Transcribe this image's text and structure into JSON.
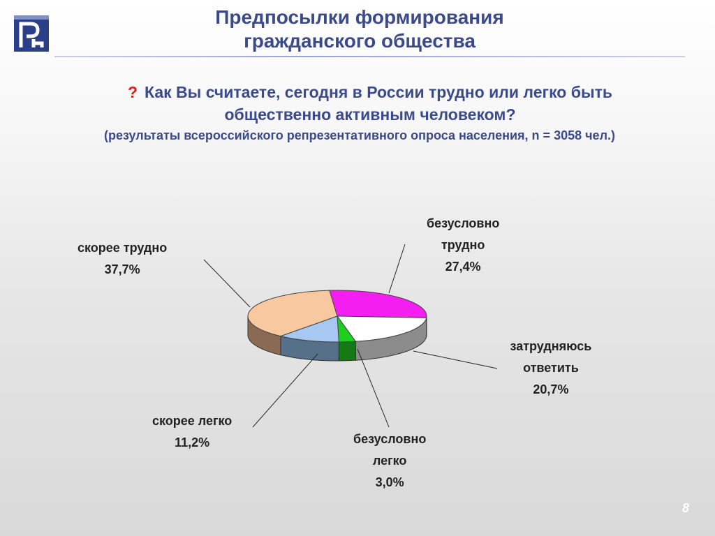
{
  "header": {
    "title_line1": "Предпосылки формирования",
    "title_line2": "гражданского общества"
  },
  "question": {
    "mark": "?",
    "line1": "Как Вы считаете, сегодня в России трудно или легко быть",
    "line2": "общественно активным человеком?",
    "note": "(результаты всероссийского репрезентативного опроса населения, n = 3058 чел.)"
  },
  "chart_data": {
    "type": "pie",
    "style": "3d",
    "slices": [
      {
        "name_lines": [
          "безусловно",
          "трудно"
        ],
        "label": "27,4%",
        "value": 27.4,
        "color": "#f51ef0"
      },
      {
        "name_lines": [
          "затрудняюсь",
          "ответить"
        ],
        "label": "20,7%",
        "value": 20.7,
        "color": "#ffffff"
      },
      {
        "name_lines": [
          "безусловно",
          "легко"
        ],
        "label": "3,0%",
        "value": 3.0,
        "color": "#1ecf1e"
      },
      {
        "name_lines": [
          "скорее легко"
        ],
        "label": "11,2%",
        "value": 11.2,
        "color": "#a8c8f4"
      },
      {
        "name_lines": [
          "скорее трудно"
        ],
        "label": "37,7%",
        "value": 37.7,
        "color": "#f8c8a0"
      }
    ]
  },
  "footer": {
    "page_number": "8"
  }
}
